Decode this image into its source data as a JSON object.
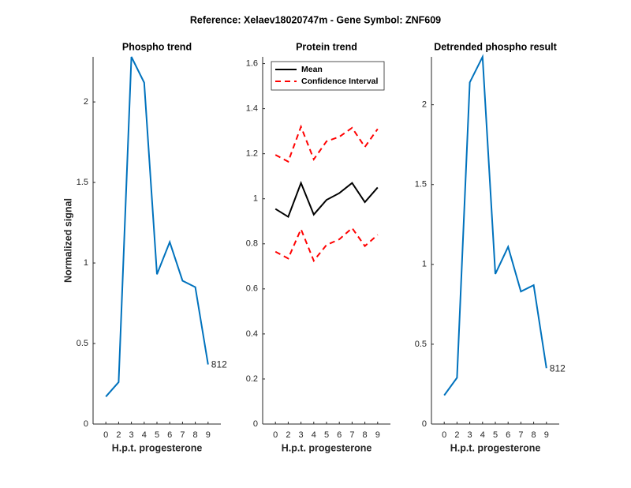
{
  "title": "Reference:  Xelaev18020747m - Gene Symbol:  ZNF609",
  "chart_data": [
    {
      "type": "line",
      "title": "Phospho trend",
      "ylabel": "Normalized signal",
      "xlabel": "H.p.t. progesterone",
      "categories": [
        "0",
        "2",
        "3",
        "4",
        "5",
        "6",
        "7",
        "8",
        "9"
      ],
      "series": [
        {
          "color": "#0072bd",
          "values": [
            0.17,
            0.26,
            2.28,
            2.12,
            0.93,
            1.13,
            0.89,
            0.85,
            0.37
          ]
        }
      ],
      "annotation": "812",
      "ylim": [
        0,
        2.28
      ],
      "yticks": [
        0,
        0.5,
        1,
        1.5,
        2
      ]
    },
    {
      "type": "band-line",
      "title": "Protein trend",
      "xlabel": "H.p.t. progesterone",
      "categories": [
        "0",
        "2",
        "3",
        "4",
        "5",
        "6",
        "7",
        "8",
        "9"
      ],
      "series": [
        {
          "name": "Mean",
          "color": "#000000",
          "values": [
            0.955,
            0.92,
            1.07,
            0.93,
            0.995,
            1.025,
            1.07,
            0.985,
            1.05
          ]
        },
        {
          "name": "Confidence Interval",
          "color": "#ff0000",
          "dashed": true,
          "upper": [
            1.195,
            1.165,
            1.32,
            1.175,
            1.255,
            1.275,
            1.315,
            1.23,
            1.31
          ],
          "lower": [
            0.765,
            0.735,
            0.865,
            0.725,
            0.795,
            0.82,
            0.87,
            0.79,
            0.84
          ]
        }
      ],
      "legend": "upper-left",
      "ylim": [
        0,
        1.63
      ],
      "yticks": [
        0,
        0.2,
        0.4,
        0.6,
        0.8,
        1,
        1.2,
        1.4,
        1.6
      ]
    },
    {
      "type": "line",
      "title": "Detrended phospho result",
      "xlabel": "H.p.t. progesterone",
      "categories": [
        "0",
        "2",
        "3",
        "4",
        "5",
        "6",
        "7",
        "8",
        "9"
      ],
      "series": [
        {
          "color": "#0072bd",
          "values": [
            0.18,
            0.29,
            2.14,
            2.3,
            0.94,
            1.11,
            0.83,
            0.87,
            0.35
          ]
        }
      ],
      "annotation": "812",
      "ylim": [
        0,
        2.3
      ],
      "yticks": [
        0,
        0.5,
        1,
        1.5,
        2
      ]
    }
  ]
}
